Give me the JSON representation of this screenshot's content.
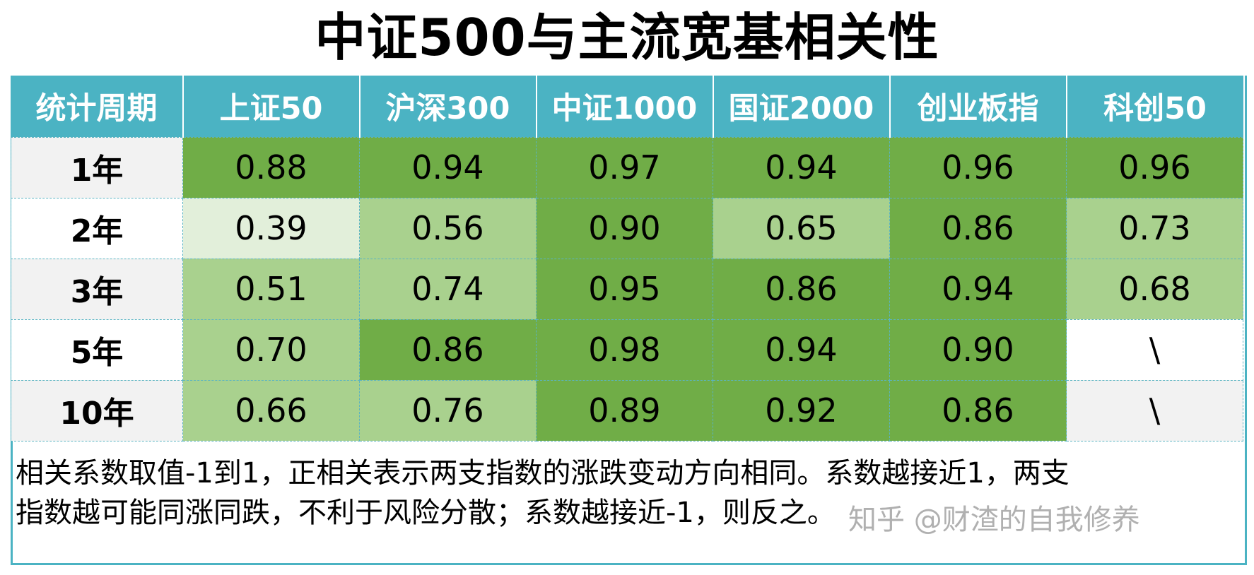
{
  "title": "中证500与主流宽基相关性",
  "table": {
    "headers": [
      "统计周期",
      "上证50",
      "沪深300",
      "中证1000",
      "国证2000",
      "创业板指",
      "科创50"
    ],
    "rows": [
      {
        "period": "1年",
        "values": [
          "0.88",
          "0.94",
          "0.97",
          "0.94",
          "0.96",
          "0.96"
        ],
        "shade": [
          "dark",
          "dark",
          "dark",
          "dark",
          "dark",
          "dark"
        ]
      },
      {
        "period": "2年",
        "values": [
          "0.39",
          "0.56",
          "0.90",
          "0.65",
          "0.86",
          "0.73"
        ],
        "shade": [
          "light",
          "mid",
          "dark",
          "mid",
          "dark",
          "mid"
        ]
      },
      {
        "period": "3年",
        "values": [
          "0.51",
          "0.74",
          "0.95",
          "0.86",
          "0.94",
          "0.68"
        ],
        "shade": [
          "mid",
          "mid",
          "dark",
          "dark",
          "dark",
          "mid"
        ]
      },
      {
        "period": "5年",
        "values": [
          "0.70",
          "0.86",
          "0.98",
          "0.94",
          "0.90",
          "\\"
        ],
        "shade": [
          "mid",
          "dark",
          "dark",
          "dark",
          "dark",
          "none"
        ]
      },
      {
        "period": "10年",
        "values": [
          "0.66",
          "0.76",
          "0.89",
          "0.92",
          "0.86",
          "\\"
        ],
        "shade": [
          "mid",
          "mid",
          "dark",
          "dark",
          "dark",
          "none"
        ]
      }
    ]
  },
  "note": {
    "line1": "相关系数取值-1到1，正相关表示两支指数的涨跌变动方向相同。系数越接近1，两支",
    "line2": "指数越可能同涨同跌，不利于风险分散；系数越接近-1，则反之。"
  },
  "watermark": "知乎 @财渣的自我修养",
  "colors": {
    "header_bg": "#4BB3C3",
    "dark_green": "#70AD47",
    "mid_green": "#A9D18E",
    "light_green": "#E2EFDA",
    "label_gray": "#F2F2F2"
  },
  "chart_data": {
    "type": "heatmap",
    "title": "中证500与主流宽基相关性",
    "xlabel": "",
    "ylabel": "统计周期",
    "categories": [
      "上证50",
      "沪深300",
      "中证1000",
      "国证2000",
      "创业板指",
      "科创50"
    ],
    "y_categories": [
      "1年",
      "2年",
      "3年",
      "5年",
      "10年"
    ],
    "series": [
      {
        "name": "1年",
        "values": [
          0.88,
          0.94,
          0.97,
          0.94,
          0.96,
          0.96
        ]
      },
      {
        "name": "2年",
        "values": [
          0.39,
          0.56,
          0.9,
          0.65,
          0.86,
          0.73
        ]
      },
      {
        "name": "3年",
        "values": [
          0.51,
          0.74,
          0.95,
          0.86,
          0.94,
          0.68
        ]
      },
      {
        "name": "5年",
        "values": [
          0.7,
          0.86,
          0.98,
          0.94,
          0.9,
          null
        ]
      },
      {
        "name": "10年",
        "values": [
          0.66,
          0.76,
          0.89,
          0.92,
          0.86,
          null
        ]
      }
    ],
    "annotations": [
      "相关系数取值-1到1，正相关表示两支指数的涨跌变动方向相同。系数越接近1，两支指数越可能同涨同跌，不利于风险分散；系数越接近-1，则反之。"
    ],
    "missing_marker": "\\"
  }
}
